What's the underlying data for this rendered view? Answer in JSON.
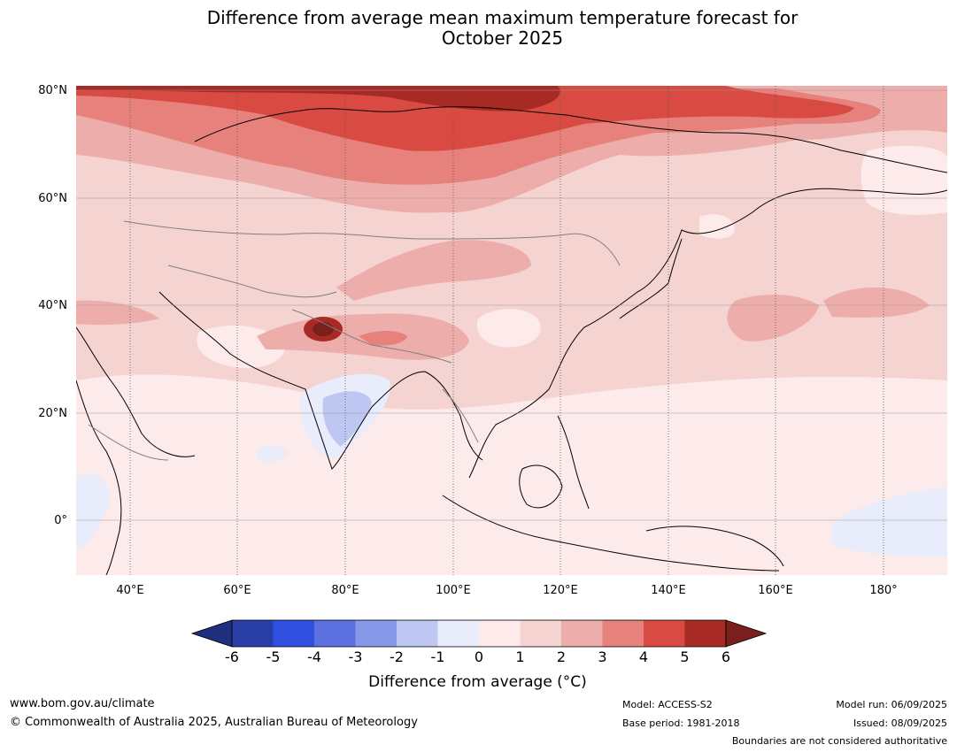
{
  "title_line1": "Difference from average mean maximum temperature forecast for",
  "title_line2": "October 2025",
  "chart_data": {
    "type": "heatmap",
    "title": "Difference from average mean maximum temperature forecast for October 2025",
    "xlabel": "",
    "ylabel": "",
    "x_ticks": [
      "40°E",
      "60°E",
      "80°E",
      "100°E",
      "120°E",
      "140°E",
      "160°E",
      "180°"
    ],
    "y_ticks": [
      "80°N",
      "60°N",
      "40°N",
      "20°N",
      "0°"
    ],
    "lon_range": [
      30,
      190
    ],
    "lat_range": [
      -10,
      80
    ],
    "colorbar": {
      "label": "Difference from average (°C)",
      "ticks": [
        "-6",
        "-5",
        "-4",
        "-3",
        "-2",
        "-1",
        "0",
        "1",
        "2",
        "3",
        "4",
        "5",
        "6"
      ],
      "levels": [
        -6,
        -5,
        -4,
        -3,
        -2,
        -1,
        0,
        1,
        2,
        3,
        4,
        5,
        6
      ],
      "colors": [
        "#1f2f7e",
        "#2a3ea8",
        "#3050e0",
        "#5c70e0",
        "#8898e8",
        "#bec6f2",
        "#e8ecfb",
        "#fdeaea",
        "#f5d3d1",
        "#edaeab",
        "#e6817c",
        "#d84a42",
        "#a82a24",
        "#7a1f1b"
      ],
      "extend": "both"
    },
    "grid": true
  },
  "footer": {
    "url": "www.bom.gov.au/climate",
    "copyright": "© Commonwealth of Australia 2025, Australian Bureau of Meteorology",
    "model": "Model: ACCESS-S2",
    "base_period": "Base period: 1981-2018",
    "model_run": "Model run: 06/09/2025",
    "issued": "Issued: 08/09/2025",
    "disclaimer": "Boundaries are not considered authoritative"
  }
}
